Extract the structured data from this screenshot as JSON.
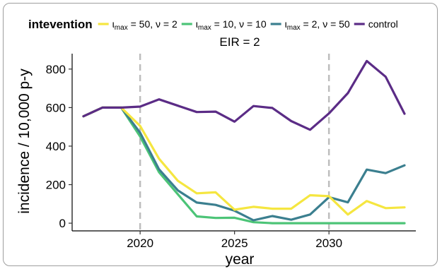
{
  "chart_data": {
    "type": "line",
    "title": "",
    "subtitle": "EIR = 2",
    "xlabel": "year",
    "ylabel": "incidence / 10,000 p-y",
    "xlim": [
      2016.4,
      2034.6
    ],
    "ylim": [
      -40,
      880
    ],
    "xticks": [
      2020,
      2025,
      2030
    ],
    "xtick_labels": [
      "2020",
      "2025",
      "2030"
    ],
    "yticks": [
      0,
      200,
      400,
      600,
      800
    ],
    "ytick_labels": [
      "0",
      "200",
      "400",
      "600",
      "800"
    ],
    "vlines": [
      2020,
      2030
    ],
    "grid": false,
    "legend": {
      "title": "intevention",
      "placement": "top",
      "items": [
        {
          "sym": "ι",
          "sub": "max",
          "rest": " = 50, ν = 2",
          "color": "#f5e640"
        },
        {
          "sym": "ι",
          "sub": "max",
          "rest": " = 10, ν = 10",
          "color": "#4cc477"
        },
        {
          "sym": "ι",
          "sub": "max",
          "rest": " = 2, ν = 50",
          "color": "#3b7f8f"
        },
        {
          "sym": "",
          "sub": "",
          "rest": "control",
          "color": "#5b2c86"
        }
      ]
    },
    "x": [
      2017,
      2018,
      2019,
      2020,
      2021,
      2022,
      2023,
      2024,
      2025,
      2026,
      2027,
      2028,
      2029,
      2030,
      2031,
      2032,
      2033,
      2034
    ],
    "series": [
      {
        "color": "#4cc477",
        "values": [
          555,
          600,
          600,
          450,
          265,
          150,
          35,
          27,
          28,
          5,
          0,
          0,
          0,
          0,
          0,
          0,
          0,
          0
        ]
      },
      {
        "color": "#3b7f8f",
        "values": [
          555,
          600,
          600,
          470,
          280,
          170,
          107,
          95,
          65,
          15,
          37,
          18,
          45,
          135,
          108,
          278,
          260,
          300
        ]
      },
      {
        "color": "#f5e640",
        "values": [
          555,
          600,
          600,
          505,
          335,
          220,
          155,
          160,
          70,
          85,
          75,
          75,
          145,
          140,
          45,
          115,
          78,
          82
        ]
      },
      {
        "color": "#5b2c86",
        "values": [
          555,
          600,
          600,
          605,
          643,
          610,
          577,
          579,
          527,
          608,
          598,
          530,
          485,
          570,
          675,
          842,
          760,
          568
        ]
      }
    ]
  }
}
